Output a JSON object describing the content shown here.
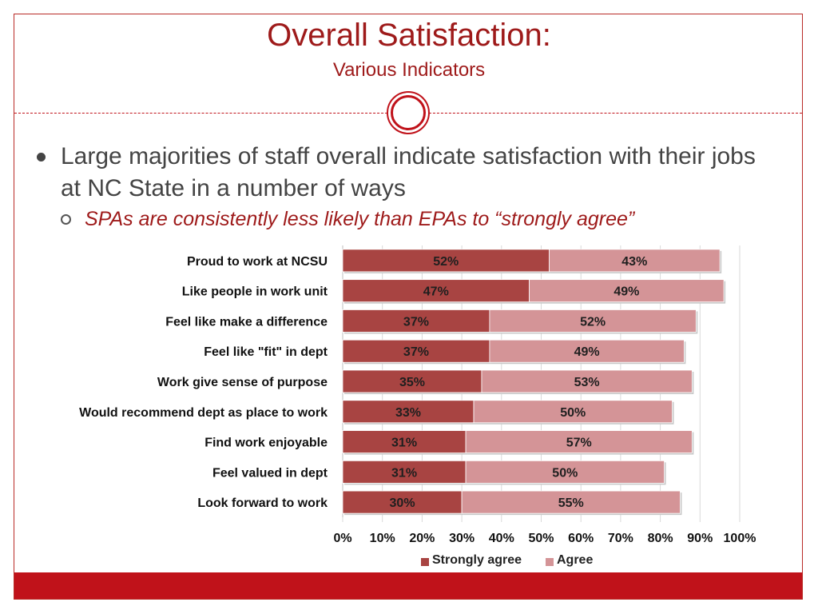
{
  "slide": {
    "title": "Overall Satisfaction:",
    "subtitle": "Various Indicators",
    "bullet": "Large majorities of staff overall indicate satisfaction with their jobs at NC State in a number of ways",
    "sub_bullet": "SPAs are consistently less likely than EPAs to “strongly agree”"
  },
  "chart_data": {
    "type": "bar",
    "orientation": "horizontal",
    "stacked": true,
    "categories": [
      "Proud to work at NCSU",
      "Like people in work unit",
      "Feel like make a difference",
      "Feel like \"fit\" in dept",
      "Work give sense of purpose",
      "Would recommend dept as place to work",
      "Find work enjoyable",
      "Feel valued in dept",
      "Look forward to work"
    ],
    "series": [
      {
        "name": "Strongly agree",
        "values": [
          52,
          47,
          37,
          37,
          35,
          33,
          31,
          31,
          30
        ],
        "color": "#a84442"
      },
      {
        "name": "Agree",
        "values": [
          43,
          49,
          52,
          49,
          53,
          50,
          57,
          50,
          55
        ],
        "color": "#d49497"
      }
    ],
    "x_ticks": [
      "0%",
      "10%",
      "20%",
      "30%",
      "40%",
      "50%",
      "60%",
      "70%",
      "80%",
      "90%",
      "100%"
    ],
    "xlim": [
      0,
      100
    ],
    "data_label_suffix": "%",
    "legend_position": "bottom"
  },
  "colors": {
    "accent": "#c0121a",
    "title": "#9e1a1a",
    "text": "#444444"
  }
}
